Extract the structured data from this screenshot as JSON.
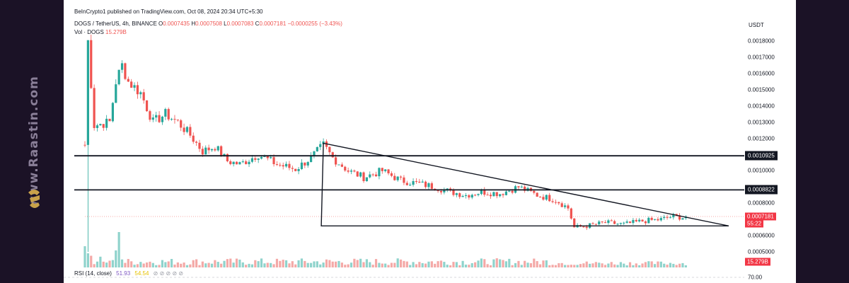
{
  "publisher": "BeInCrypto1 published on TradingView.com, Oct 08, 2024 20:34 UTC+5:30",
  "watermark": "www.Raastin.com",
  "symbol": {
    "name": "DOGS / TetherUS, 4h, BINANCE",
    "open_label": "O",
    "open": "0.0007435",
    "high_label": "H",
    "high": "0.0007508",
    "low_label": "L",
    "low": "0.0007083",
    "close_label": "C",
    "close": "0.0007181",
    "change": "−0.0000255 (−3.43%)"
  },
  "volume": {
    "label": "Vol · DOGS",
    "value": "15.279B"
  },
  "rsi": {
    "label": "RSI (14, close)",
    "value1": "51.93",
    "value2": "54.54",
    "rest": "⊘ ⊘ ⊘ ⊘ ⊘"
  },
  "currency": "USDT",
  "price_tags": {
    "resistance_1": "0.0010925",
    "resistance_2": "0.0008822",
    "last_price": "0.0007181",
    "countdown": "55:22",
    "volume_tag": "15.279B",
    "rsi_level": "70.00"
  },
  "colors": {
    "up": "#26a69a",
    "down": "#ef5350",
    "line": "#131722",
    "rsi": "#7e57c2"
  },
  "chart_data": {
    "type": "candlestick",
    "x_range_candles": 210,
    "ylim": [
      0.00045,
      0.00182
    ],
    "y_ticks": [
      0.0005,
      0.0006,
      0.0008,
      0.001,
      0.0012,
      0.0013,
      0.0014,
      0.0015,
      0.0016,
      0.0017,
      0.0018
    ],
    "y_tick_labels": [
      "0.0005000",
      "0.0006000",
      "0.0008000",
      "0.0010000",
      "0.0012000",
      "0.0013000",
      "0.0014000",
      "0.0015000",
      "0.0016000",
      "0.0017000",
      "0.0018000"
    ],
    "horizontal_levels": [
      0.0010925,
      0.0008822
    ],
    "last_price": 0.0007181,
    "triangle": {
      "apex_top": {
        "candle": 77,
        "price": 0.00117
      },
      "bottom_left": {
        "candle": 77,
        "price": 0.00066
      },
      "right_apex": {
        "candle": 206,
        "price": 0.00066
      }
    },
    "anchors": [
      [
        0,
        0.00116
      ],
      [
        1,
        0.0018
      ],
      [
        3,
        0.00128
      ],
      [
        8,
        0.0013
      ],
      [
        10,
        0.00155
      ],
      [
        12,
        0.00165
      ],
      [
        14,
        0.00155
      ],
      [
        18,
        0.00148
      ],
      [
        22,
        0.0013
      ],
      [
        26,
        0.00135
      ],
      [
        30,
        0.0013
      ],
      [
        34,
        0.00122
      ],
      [
        38,
        0.00112
      ],
      [
        42,
        0.00115
      ],
      [
        46,
        0.00106
      ],
      [
        50,
        0.00104
      ],
      [
        56,
        0.0011
      ],
      [
        62,
        0.00104
      ],
      [
        68,
        0.00101
      ],
      [
        73,
        0.00108
      ],
      [
        77,
        0.00116
      ],
      [
        80,
        0.00108
      ],
      [
        85,
        0.001
      ],
      [
        90,
        0.00096
      ],
      [
        96,
        0.001
      ],
      [
        102,
        0.00094
      ],
      [
        108,
        0.00092
      ],
      [
        113,
        0.0009
      ],
      [
        118,
        0.00087
      ],
      [
        123,
        0.00085
      ],
      [
        128,
        0.00087
      ],
      [
        134,
        0.00086
      ],
      [
        140,
        0.0009
      ],
      [
        146,
        0.00085
      ],
      [
        152,
        0.00082
      ],
      [
        156,
        0.00077
      ],
      [
        158,
        0.00065
      ],
      [
        162,
        0.00066
      ],
      [
        168,
        0.00068
      ],
      [
        174,
        0.00067
      ],
      [
        180,
        0.00069
      ],
      [
        186,
        0.0007
      ],
      [
        190,
        0.00072
      ],
      [
        194,
        0.00071
      ]
    ]
  }
}
